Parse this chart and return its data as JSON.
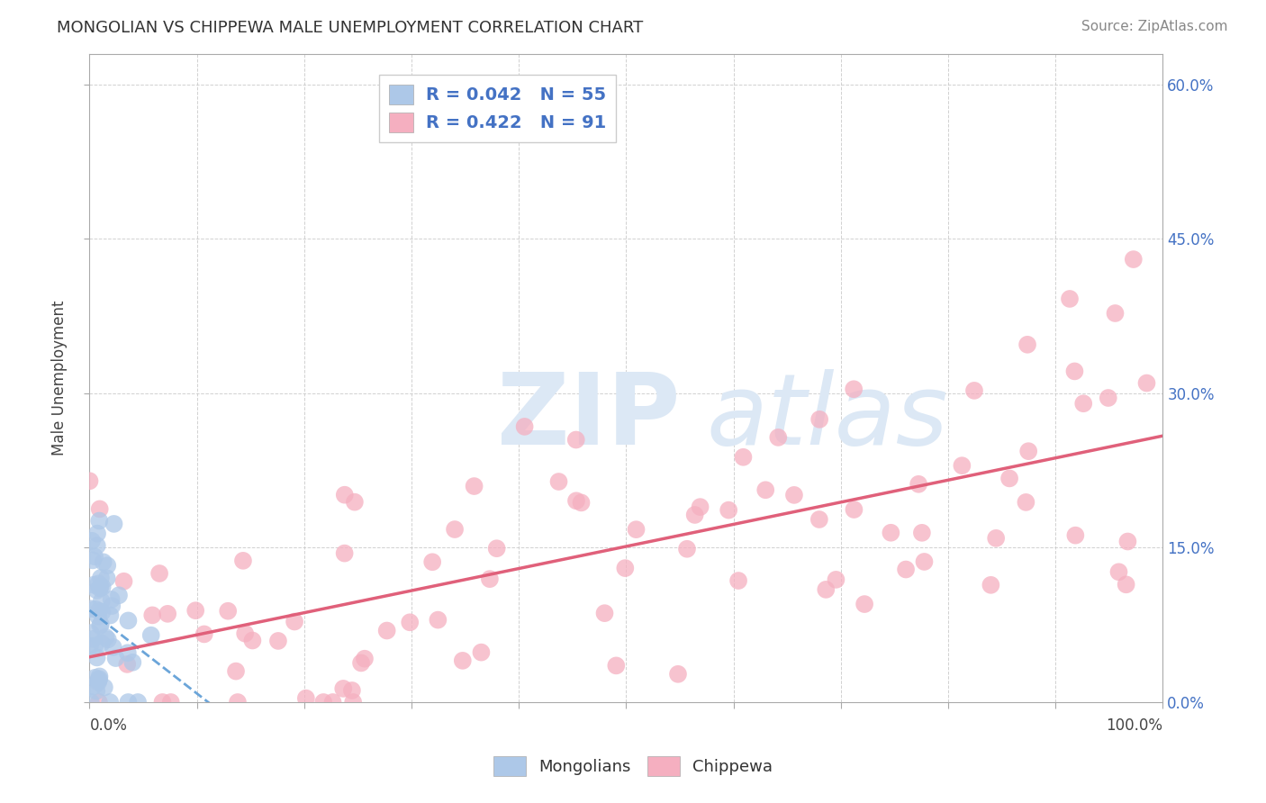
{
  "title": "MONGOLIAN VS CHIPPEWA MALE UNEMPLOYMENT CORRELATION CHART",
  "source": "Source: ZipAtlas.com",
  "ylabel": "Male Unemployment",
  "mongolian_R": 0.042,
  "mongolian_N": 55,
  "chippewa_R": 0.422,
  "chippewa_N": 91,
  "mongolian_color": "#adc8e8",
  "chippewa_color": "#f5afc0",
  "mongolian_line_color": "#5b9bd5",
  "chippewa_line_color": "#e0607a",
  "watermark_color": "#dce8f5",
  "background_color": "#ffffff",
  "legend_mongolian_label": "R = 0.042   N = 55",
  "legend_chippewa_label": "R = 0.422   N = 91",
  "bottom_mongolian_label": "Mongolians",
  "bottom_chippewa_label": "Chippewa",
  "mongolian_seed": 7,
  "chippewa_seed": 13,
  "mong_intercept": 8.0,
  "mong_slope": 0.04,
  "chip_intercept": 7.0,
  "chip_slope": 0.18
}
